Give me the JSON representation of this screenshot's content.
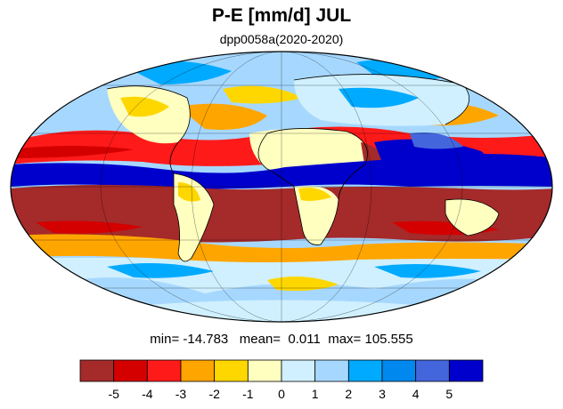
{
  "title": "P-E [mm/d] JUL",
  "subtitle": "dpp0058a(2020-2020)",
  "stats": {
    "min_label": "min=",
    "min": "-14.783",
    "mean_label": "mean=",
    "mean": "0.011",
    "max_label": "max=",
    "max": "105.555"
  },
  "colorbar": {
    "colors": [
      "#a52a2a",
      "#d40000",
      "#ff1a1a",
      "#ffa500",
      "#ffd700",
      "#ffffc0",
      "#d0f0ff",
      "#a6d8ff",
      "#00aaff",
      "#0088ee",
      "#4466dd",
      "#0000cc"
    ],
    "ticks": [
      "-5",
      "-4",
      "-3",
      "-2",
      "-1",
      "0",
      "1",
      "2",
      "3",
      "4",
      "5"
    ]
  },
  "map": {
    "projection": "mollweide",
    "variable": "P-E",
    "units": "mm/d"
  }
}
